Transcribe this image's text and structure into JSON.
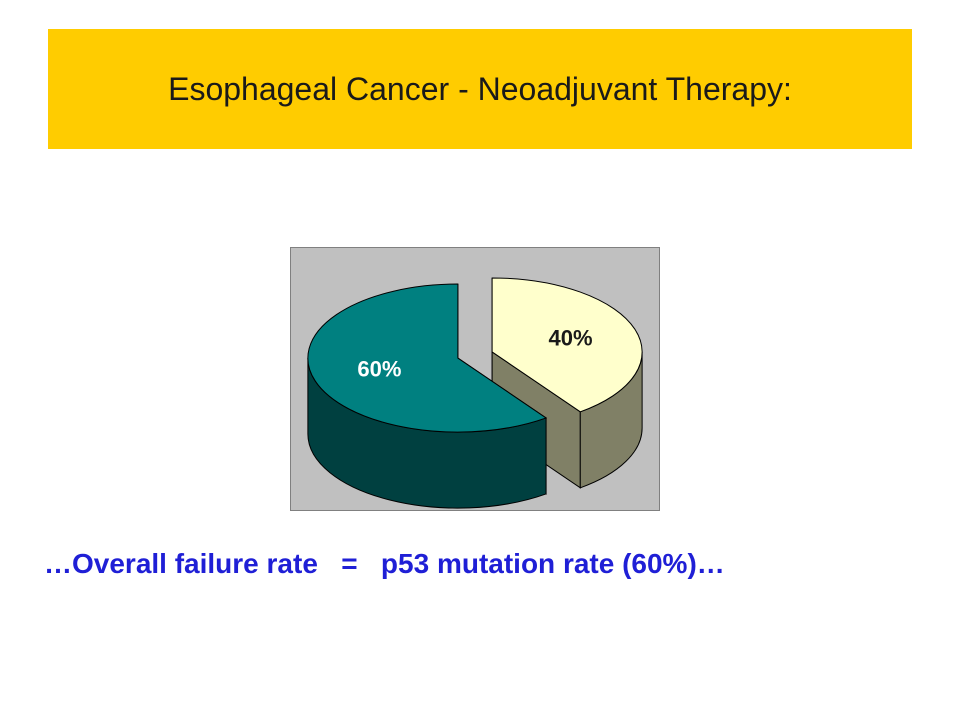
{
  "slide": {
    "title": "Esophageal Cancer - Neoadjuvant Therapy:",
    "caption": "…Overall failure rate   =   p53 mutation rate (60%)…"
  },
  "chart_data": {
    "type": "pie",
    "style": "3d-exploded",
    "slices": [
      {
        "value": 60,
        "label": "60%",
        "top_color": "#008080",
        "side_color": "#004040",
        "label_color": "#ffffff"
      },
      {
        "value": 40,
        "label": "40%",
        "top_color": "#ffffcc",
        "side_color": "#808066",
        "label_color": "#1a1a1a"
      }
    ],
    "plot_background": "#c0c0c0",
    "legend": "none"
  },
  "colors": {
    "banner": "#ffcc00",
    "caption": "#1f1fd6"
  }
}
